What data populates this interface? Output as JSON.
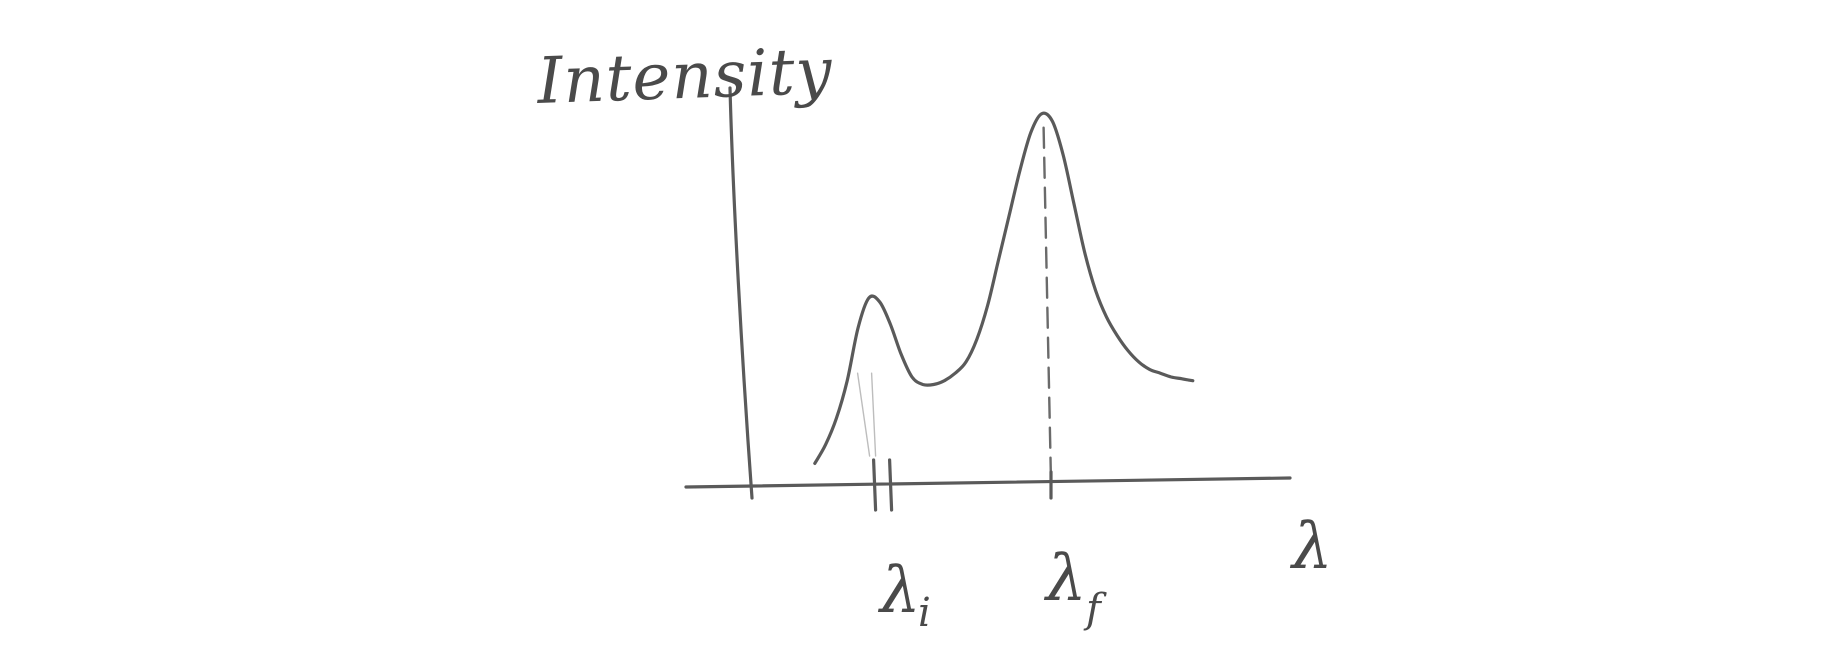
{
  "chart_data": {
    "type": "line",
    "ylabel": "Intensity",
    "xlabel": "λ",
    "xlim": [
      0,
      100
    ],
    "ylim": [
      0,
      100
    ],
    "grid": false,
    "x": [
      12,
      14,
      16,
      18,
      20,
      22,
      24,
      26,
      28,
      30,
      32,
      34,
      36,
      38,
      40,
      42,
      44,
      46,
      48,
      50,
      52,
      54,
      56,
      58,
      60,
      62,
      64,
      66,
      68,
      70,
      72,
      74,
      76,
      78,
      80,
      82
    ],
    "series": [
      {
        "values": [
          6,
          11,
          18,
          28,
          42,
          50,
          49,
          43,
          35,
          29,
          27,
          27,
          28,
          30,
          33,
          39,
          48,
          60,
          72,
          84,
          94,
          99,
          97,
          88,
          75,
          62,
          52,
          45,
          40,
          36,
          33,
          31,
          30,
          29,
          28.5,
          28
        ]
      }
    ],
    "ticks": [
      {
        "name": "lambda-i",
        "label": "λ",
        "subscript": "i",
        "x": 24
      },
      {
        "name": "lambda-f",
        "label": "λ",
        "subscript": "f",
        "x": 55,
        "dashed_guide": true
      }
    ]
  }
}
